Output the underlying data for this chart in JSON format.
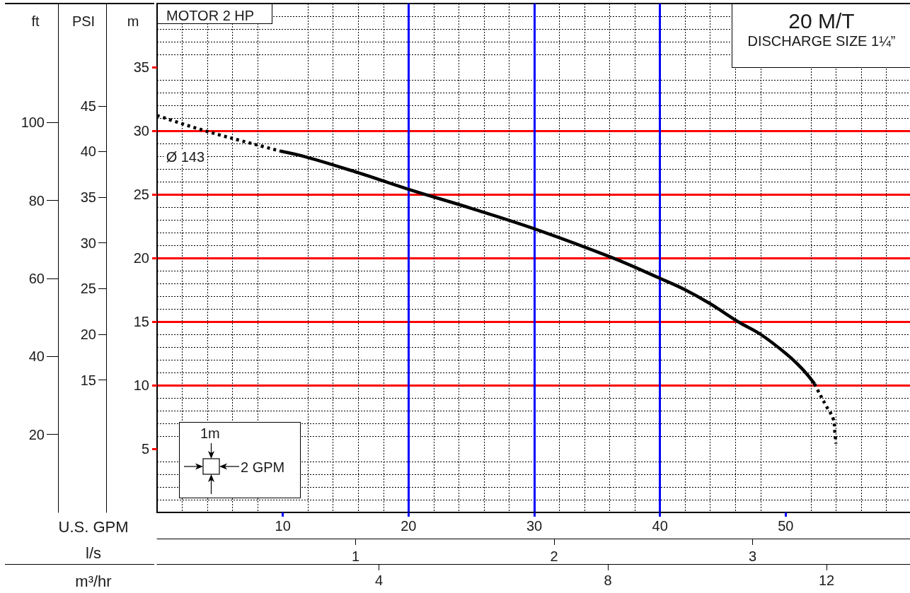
{
  "chart_data": {
    "type": "line",
    "title": "20 M/T",
    "subtitle": "DISCHARGE SIZE 1¼”",
    "xlabel": "U.S. GPM",
    "x2label": "l/s",
    "ylabel": "m",
    "y2label": "PSI",
    "y3label": "ft",
    "annotations": [
      "MOTOR 2 HP",
      "1m",
      "2 GPM",
      "m³/hr",
      "4",
      "8",
      "12"
    ],
    "series": [
      {
        "color": "#000000",
        "line_style": "dotted",
        "x": [
          0,
          3.8,
          7.9,
          9.8
        ],
        "values": [
          31.2,
          30.0,
          28.9,
          28.4
        ]
      },
      {
        "name": "Ø 143",
        "color": "#000000",
        "line_style": "solid",
        "x": [
          9.8,
          12,
          16,
          20,
          25,
          30,
          36,
          40,
          42,
          44,
          46.2,
          48,
          50,
          51.3,
          52.3
        ],
        "values": [
          28.4,
          27.9,
          26.7,
          25.4,
          23.9,
          22.3,
          20.1,
          18.4,
          17.5,
          16.4,
          15.0,
          14.0,
          12.5,
          11.3,
          10.1
        ]
      },
      {
        "color": "#000000",
        "line_style": "dotted",
        "x": [
          52.3,
          52.5,
          53.2,
          53.8,
          53.9,
          54.0
        ],
        "values": [
          10.1,
          9.7,
          8.4,
          7.3,
          6.4,
          5.4
        ]
      }
    ],
    "xlim": [
      0,
      60
    ],
    "xticks": [
      10,
      20,
      30,
      40,
      50
    ],
    "x2lim": [
      0,
      3.8
    ],
    "x2ticks": [
      1,
      2,
      3
    ],
    "ylim": [
      0,
      40
    ],
    "yticks": [
      5,
      10,
      15,
      20,
      25,
      30,
      35
    ],
    "y2lim": [
      0.5,
      56.2
    ],
    "y2ticks": [
      15,
      20,
      25,
      30,
      35,
      40,
      45
    ],
    "y3lim": [
      0,
      130.5
    ],
    "y3ticks": [
      20,
      40,
      60,
      80,
      100
    ],
    "grid": true
  }
}
